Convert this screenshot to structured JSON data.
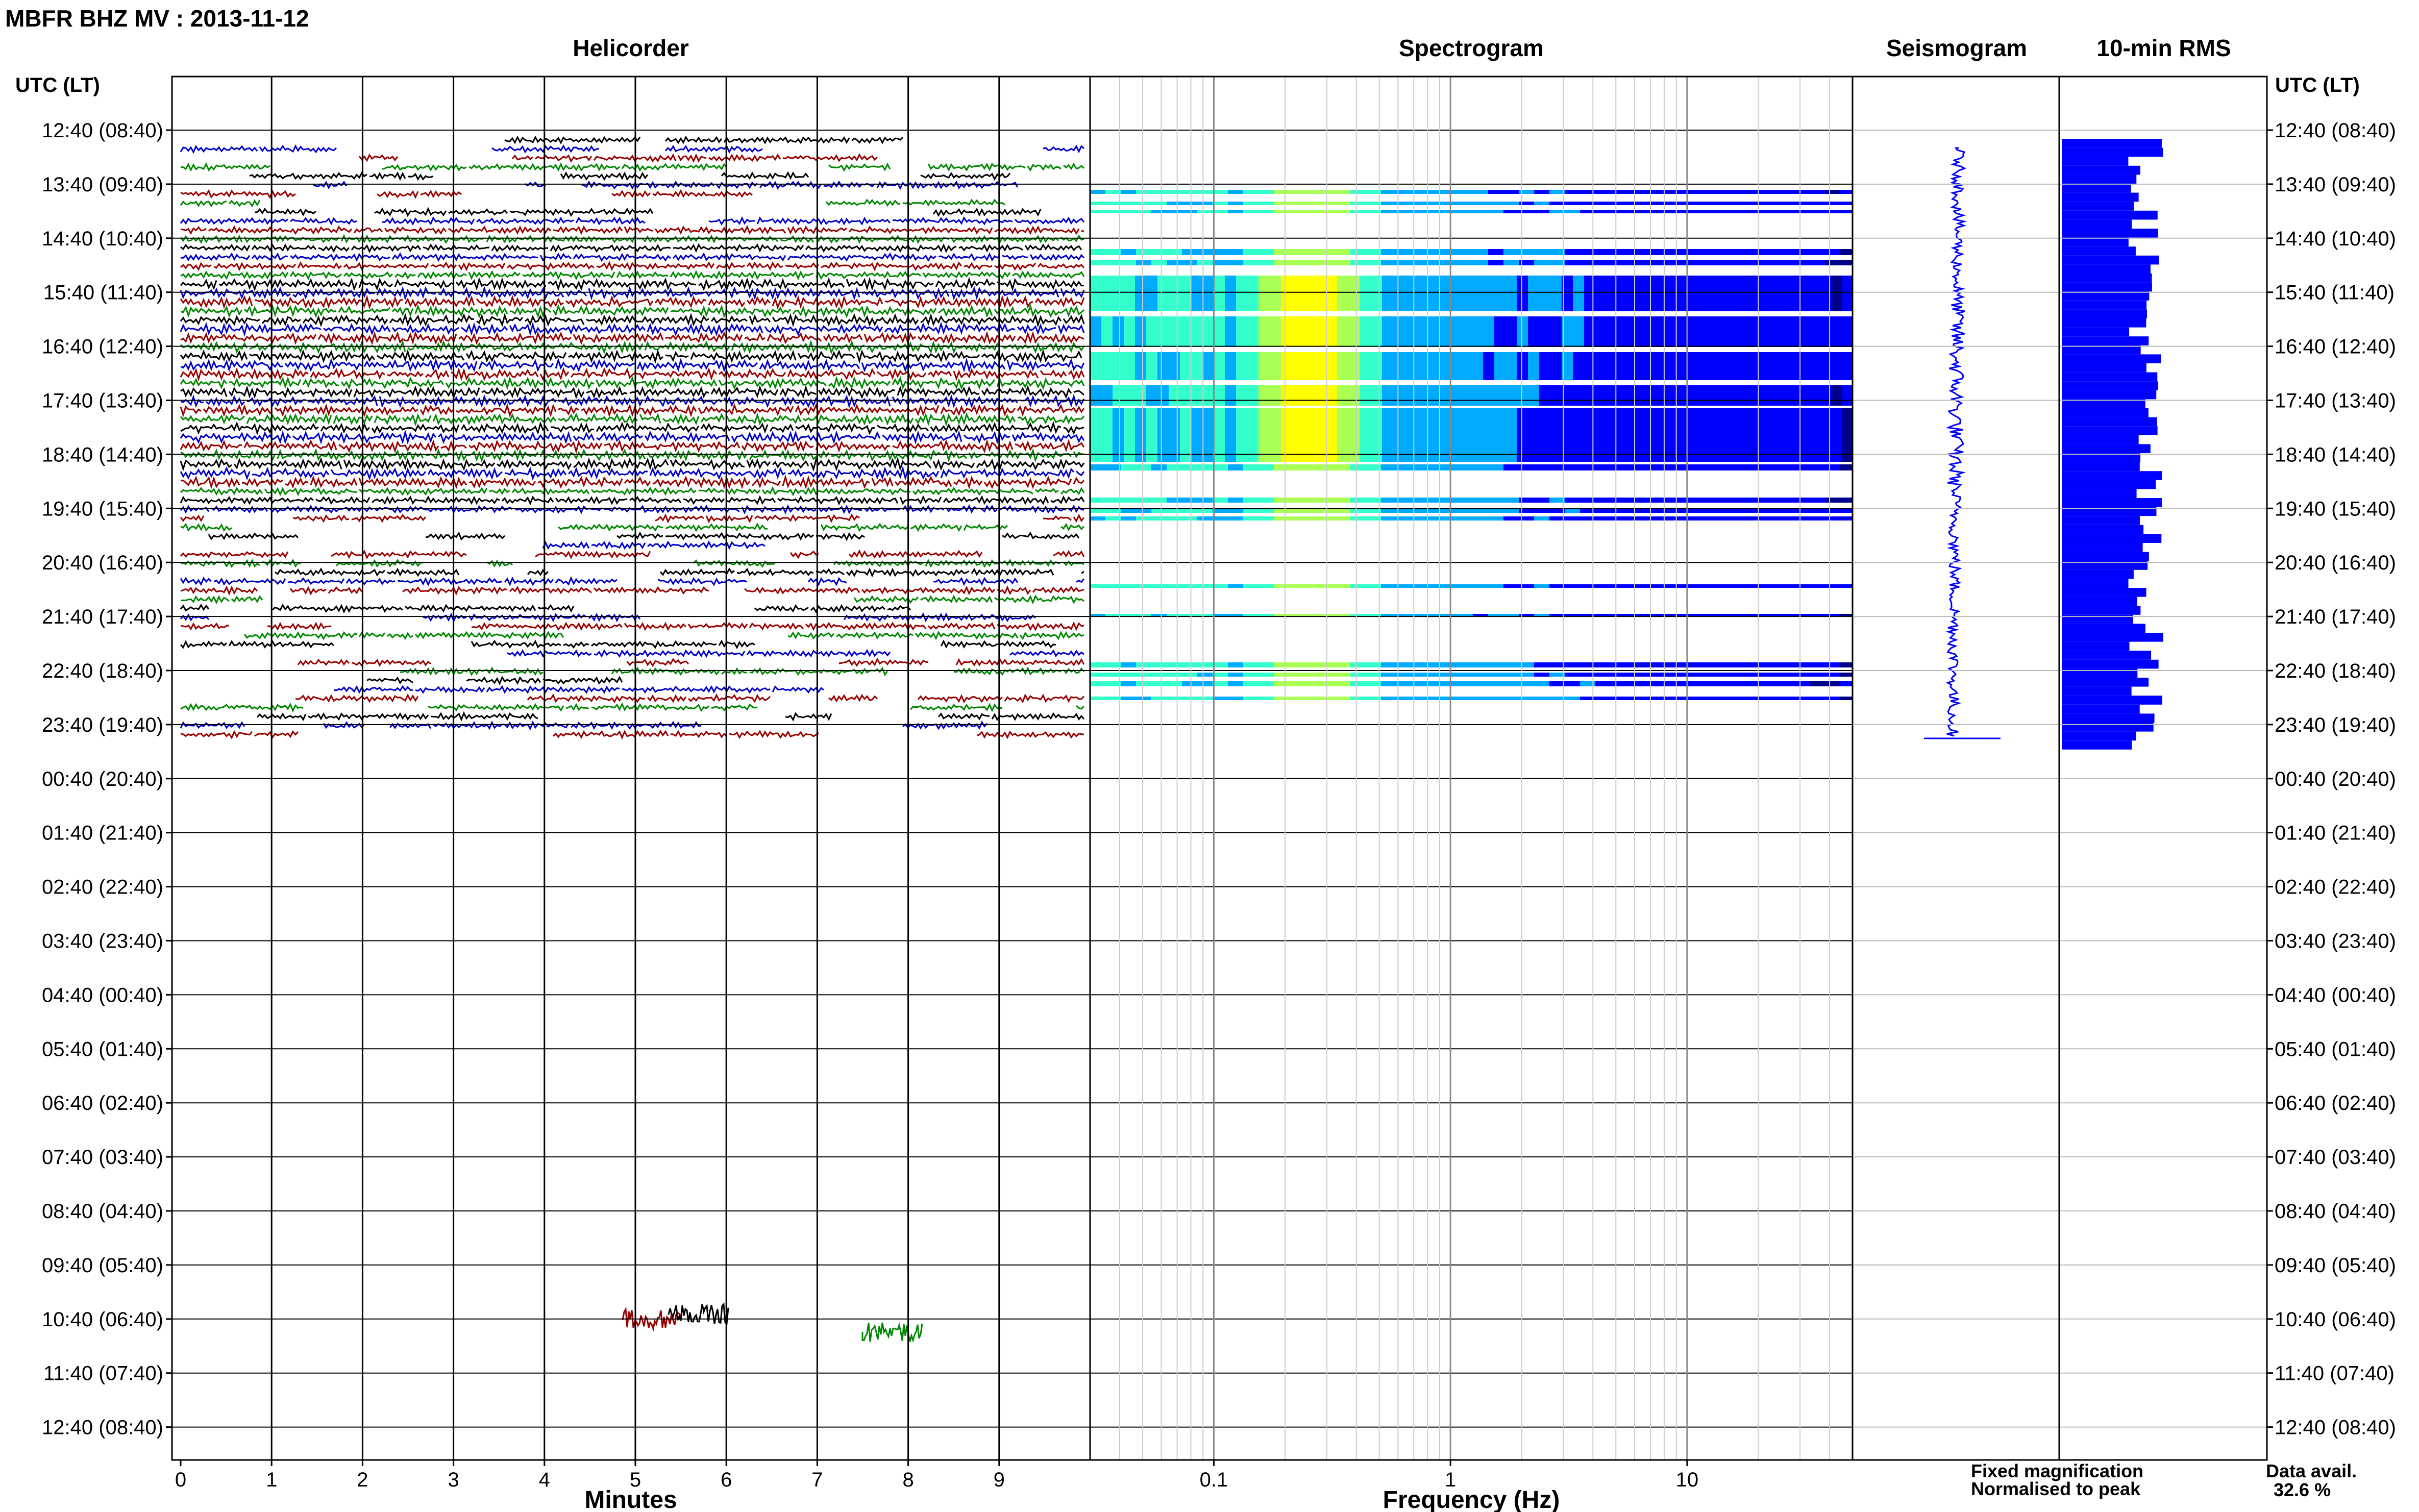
{
  "header": {
    "title": "MBFR BHZ MV : 2013-11-12",
    "left_axis_label": "UTC (LT)",
    "right_axis_label": "UTC (LT)"
  },
  "chart_data": [
    {
      "type": "line",
      "panel": "helicorder",
      "title": "Helicorder",
      "xlabel": "Minutes",
      "x_ticks": [
        "0",
        "1",
        "2",
        "3",
        "4",
        "5",
        "6",
        "7",
        "8",
        "9"
      ],
      "xlim": [
        0,
        10
      ],
      "y_ticks": [
        "12:40 (08:40)",
        "13:40 (09:40)",
        "14:40 (10:40)",
        "15:40 (11:40)",
        "16:40 (12:40)",
        "17:40 (13:40)",
        "18:40 (14:40)",
        "19:40 (15:40)",
        "20:40 (16:40)",
        "21:40 (17:40)",
        "22:40 (18:40)",
        "23:40 (19:40)",
        "00:40 (20:40)",
        "01:40 (21:40)",
        "02:40 (22:40)",
        "03:40 (23:40)",
        "04:40 (00:40)",
        "05:40 (01:40)",
        "06:40 (02:40)",
        "07:40 (03:40)",
        "08:40 (04:40)",
        "09:40 (05:40)",
        "10:40 (06:40)",
        "11:40 (07:40)",
        "12:40 (08:40)"
      ],
      "trace_colors": [
        "#000000",
        "#0000cc",
        "#990000",
        "#008800"
      ],
      "data_rows_hours": 11.2
    },
    {
      "type": "heatmap",
      "panel": "spectrogram",
      "title": "Spectrogram",
      "xlabel": "Frequency (Hz)",
      "x_scale": "log",
      "x_ticks": [
        "0.1",
        "1",
        "10"
      ],
      "xlim": [
        0.03,
        50
      ],
      "colormap": [
        "#00008b",
        "#0000ff",
        "#00aaff",
        "#33ffcc",
        "#aaff55",
        "#ffff00"
      ],
      "energy_peak_hz": 0.25
    },
    {
      "type": "line",
      "panel": "seismogram",
      "title": "Seismogram",
      "color": "#0000ff"
    },
    {
      "type": "bar",
      "panel": "rms",
      "title": "10-min RMS",
      "orientation": "horizontal",
      "color": "#0000ff"
    }
  ],
  "legend": {
    "fixed_label": "Fixed magnification",
    "fixed_color": "#0000ff",
    "normalised_label": "Normalised to peak",
    "normalised_color": "#ff0000"
  },
  "availability": {
    "label": "Data avail.",
    "value": "32.6 %"
  }
}
